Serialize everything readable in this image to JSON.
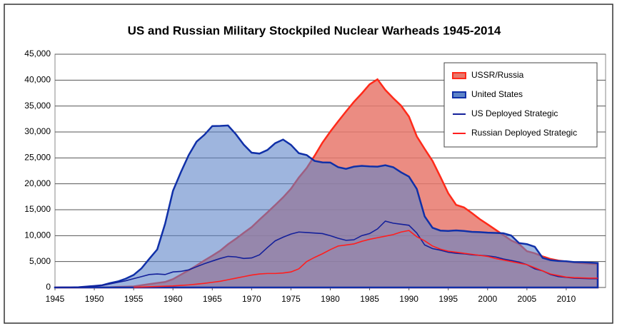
{
  "chart_data": {
    "type": "area",
    "title": "US and Russian Military Stockpiled Nuclear Warheads 1945-2014",
    "x": [
      1945,
      1946,
      1947,
      1948,
      1949,
      1950,
      1951,
      1952,
      1953,
      1954,
      1955,
      1956,
      1957,
      1958,
      1959,
      1960,
      1961,
      1962,
      1963,
      1964,
      1965,
      1966,
      1967,
      1968,
      1969,
      1970,
      1971,
      1972,
      1973,
      1974,
      1975,
      1976,
      1977,
      1978,
      1979,
      1980,
      1981,
      1982,
      1983,
      1984,
      1985,
      1986,
      1987,
      1988,
      1989,
      1990,
      1991,
      1992,
      1993,
      1994,
      1995,
      1996,
      1997,
      1998,
      1999,
      2000,
      2001,
      2002,
      2003,
      2004,
      2005,
      2006,
      2007,
      2008,
      2009,
      2010,
      2011,
      2012,
      2013,
      2014
    ],
    "series": [
      {
        "name": "USSR/Russia",
        "kind": "area",
        "color": "#e8786c",
        "line_color": "#ff2a1a",
        "values": [
          0,
          0,
          0,
          0,
          1,
          5,
          25,
          50,
          120,
          150,
          200,
          426,
          660,
          869,
          1060,
          1605,
          2471,
          3322,
          4238,
          5221,
          6129,
          7089,
          8339,
          9399,
          10538,
          11643,
          13092,
          14478,
          15915,
          17385,
          19055,
          21205,
          23044,
          25393,
          27935,
          30062,
          32049,
          33952,
          35804,
          37431,
          39197,
          40159,
          38107,
          36538,
          35078,
          32980,
          29154,
          26734,
          24403,
          21339,
          18179,
          15942,
          15442,
          14368,
          13188,
          12188,
          11152,
          10114,
          9076,
          8400,
          7000,
          6600,
          6000,
          5500,
          5200,
          5000,
          4850,
          4700,
          4600,
          4500
        ]
      },
      {
        "name": "United States",
        "kind": "area",
        "color": "#5d84c8",
        "line_color": "#1030a8",
        "values": [
          2,
          9,
          13,
          50,
          170,
          299,
          438,
          841,
          1169,
          1703,
          2422,
          3692,
          5543,
          7345,
          12298,
          18638,
          22229,
          25540,
          28133,
          29463,
          31139,
          31175,
          31255,
          29561,
          27552,
          26008,
          25830,
          26516,
          27835,
          28537,
          27519,
          25914,
          25542,
          24418,
          24138,
          24104,
          23208,
          22886,
          23305,
          23459,
          23368,
          23317,
          23575,
          23205,
          22217,
          21392,
          19008,
          13708,
          11511,
          10979,
          10904,
          11011,
          10903,
          10732,
          10685,
          10577,
          10526,
          10457,
          10027,
          8570,
          8360,
          7853,
          5709,
          5273,
          5113,
          5066,
          4897,
          4881,
          4804,
          4717
        ]
      },
      {
        "name": "US Deployed Strategic",
        "kind": "line",
        "color": "#14209a",
        "values": [
          0,
          0,
          0,
          50,
          150,
          250,
          400,
          700,
          1000,
          1300,
          1700,
          2100,
          2500,
          2600,
          2500,
          3000,
          3100,
          3400,
          4000,
          4600,
          5100,
          5600,
          6000,
          5900,
          5600,
          5700,
          6300,
          7700,
          9000,
          9700,
          10300,
          10700,
          10600,
          10500,
          10400,
          10000,
          9500,
          9100,
          9200,
          10000,
          10400,
          11300,
          12800,
          12400,
          12200,
          12000,
          10500,
          8200,
          7500,
          7200,
          6800,
          6600,
          6500,
          6300,
          6200,
          6100,
          5900,
          5500,
          5200,
          4900,
          4400,
          3600,
          3200,
          2500,
          2100,
          1950,
          1800,
          1750,
          1700,
          1700
        ]
      },
      {
        "name": "Russian Deployed Strategic",
        "kind": "line",
        "color": "#ff1e1e",
        "values": [
          null,
          null,
          null,
          null,
          null,
          null,
          null,
          null,
          null,
          null,
          50,
          100,
          150,
          200,
          250,
          300,
          400,
          500,
          650,
          800,
          1000,
          1200,
          1500,
          1800,
          2100,
          2400,
          2600,
          2700,
          2700,
          2800,
          3000,
          3600,
          5000,
          5800,
          6500,
          7300,
          8000,
          8200,
          8400,
          8900,
          9300,
          9600,
          9900,
          10200,
          10700,
          11000,
          9800,
          9000,
          8000,
          7400,
          7000,
          6800,
          6600,
          6400,
          6200,
          6000,
          5600,
          5300,
          5000,
          4700,
          4400,
          3800,
          3200,
          2600,
          2300,
          2000,
          1900,
          1850,
          1800,
          1800
        ]
      }
    ],
    "xlim": [
      1945,
      2015
    ],
    "xticks": [
      1945,
      1950,
      1955,
      1960,
      1965,
      1970,
      1975,
      1980,
      1985,
      1990,
      1995,
      2000,
      2005,
      2010
    ],
    "ylim": [
      0,
      45000
    ],
    "yticks": [
      0,
      {
        "value": 5000,
        "label": "5,000"
      },
      {
        "value": 10000,
        "label": "10,000"
      },
      {
        "value": 15000,
        "label": "15,000"
      },
      {
        "value": 20000,
        "label": "20,000"
      },
      {
        "value": 25000,
        "label": "25,000"
      },
      {
        "value": 30000,
        "label": "30,000"
      },
      {
        "value": 35000,
        "label": "35,000"
      },
      {
        "value": 40000,
        "label": "40,000"
      },
      {
        "value": 45000,
        "label": "45,000"
      }
    ],
    "grid": true,
    "legend": "upper right"
  }
}
